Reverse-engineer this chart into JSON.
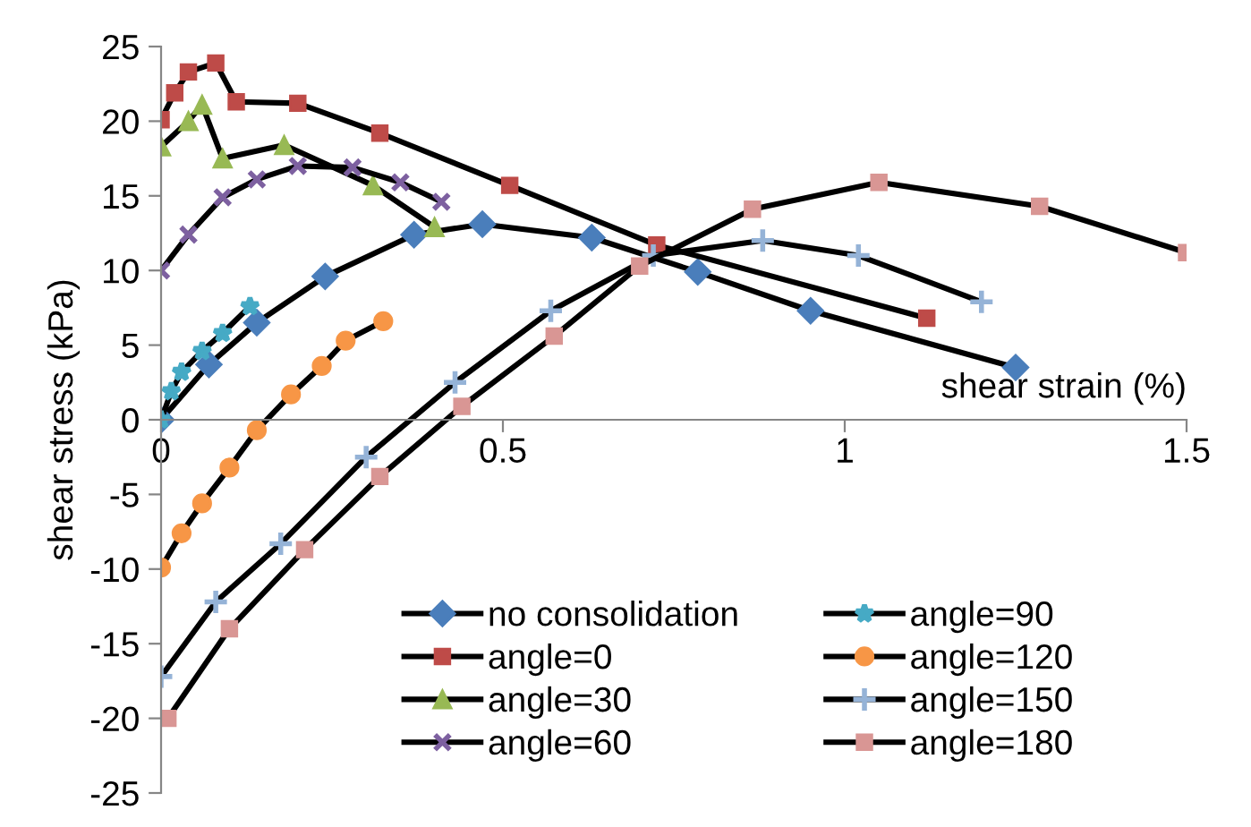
{
  "chart_data": {
    "type": "line",
    "xlabel": "shear strain (%)",
    "ylabel": "shear stress (kPa)",
    "xlim": [
      0,
      1.5
    ],
    "ylim": [
      -25,
      25
    ],
    "xticks": [
      0,
      0.5,
      1,
      1.5
    ],
    "yticks": [
      -25,
      -20,
      -15,
      -10,
      -5,
      0,
      5,
      10,
      15,
      20,
      25
    ],
    "grid": false,
    "legend": "bottom right",
    "series": [
      {
        "name": "no consolidation",
        "color": "#4a7ebb",
        "marker": "diamond",
        "x": [
          0,
          0.07,
          0.14,
          0.24,
          0.37,
          0.47,
          0.63,
          0.785,
          0.95,
          1.25
        ],
        "values": [
          0,
          3.7,
          6.5,
          9.6,
          12.4,
          13.1,
          12.2,
          9.9,
          7.3,
          3.5
        ]
      },
      {
        "name": "angle=0",
        "color": "#be4b48",
        "marker": "square",
        "x": [
          0,
          0.02,
          0.04,
          0.08,
          0.11,
          0.2,
          0.32,
          0.51,
          0.725,
          1.12
        ],
        "values": [
          20.1,
          21.9,
          23.3,
          23.9,
          21.3,
          21.2,
          19.2,
          15.7,
          11.7,
          6.8
        ]
      },
      {
        "name": "angle=30",
        "color": "#98b954",
        "marker": "triangle",
        "x": [
          0,
          0.04,
          0.06,
          0.09,
          0.18,
          0.31,
          0.4
        ],
        "values": [
          18.3,
          20.0,
          21.1,
          17.5,
          18.4,
          15.7,
          12.9
        ]
      },
      {
        "name": "angle=60",
        "color": "#7d60a0",
        "marker": "cross",
        "x": [
          0,
          0.04,
          0.09,
          0.14,
          0.2,
          0.28,
          0.35,
          0.41
        ],
        "values": [
          10.0,
          12.4,
          14.9,
          16.1,
          17.0,
          16.9,
          15.9,
          14.6
        ]
      },
      {
        "name": "angle=90",
        "color": "#46aac5",
        "marker": "star",
        "x": [
          0,
          0.015,
          0.03,
          0.06,
          0.09,
          0.13
        ],
        "values": [
          0,
          1.9,
          3.2,
          4.6,
          5.8,
          7.6
        ]
      },
      {
        "name": "angle=120",
        "color": "#f79646",
        "marker": "circle",
        "x": [
          0,
          0.03,
          0.06,
          0.1,
          0.14,
          0.19,
          0.235,
          0.27,
          0.325
        ],
        "values": [
          -9.9,
          -7.6,
          -5.6,
          -3.2,
          -0.7,
          1.7,
          3.6,
          5.3,
          6.6
        ]
      },
      {
        "name": "angle=150",
        "color": "#95b3d7",
        "marker": "plus",
        "x": [
          0,
          0.08,
          0.175,
          0.3,
          0.43,
          0.57,
          0.72,
          0.88,
          1.02,
          1.2
        ],
        "values": [
          -17.2,
          -12.2,
          -8.3,
          -2.5,
          2.5,
          7.3,
          11.0,
          12.0,
          11.0,
          7.9
        ]
      },
      {
        "name": "angle=180",
        "color": "#d99694",
        "marker": "square",
        "x": [
          0.01,
          0.1,
          0.21,
          0.32,
          0.44,
          0.575,
          0.7,
          0.865,
          1.05,
          1.285,
          1.5
        ],
        "values": [
          -20.0,
          -14.0,
          -8.7,
          -3.8,
          0.9,
          5.6,
          10.3,
          14.1,
          15.9,
          14.3,
          11.2
        ]
      }
    ]
  }
}
